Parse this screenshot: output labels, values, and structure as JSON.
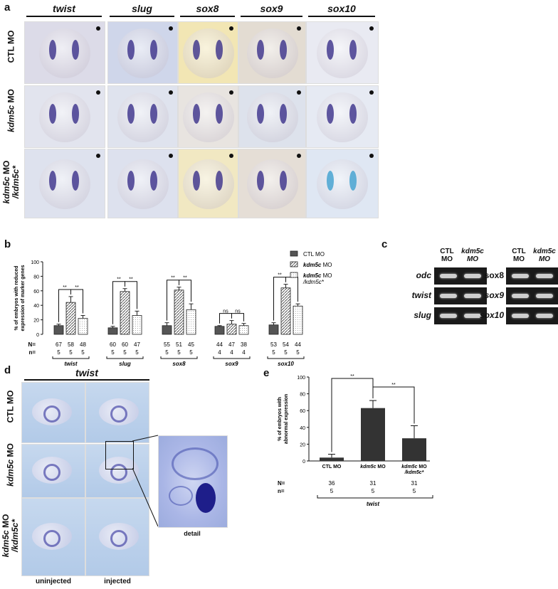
{
  "panel_a": {
    "letter": "a",
    "columns": [
      "twist",
      "slug",
      "sox8",
      "sox9",
      "sox10"
    ],
    "rows": [
      {
        "label": "CTL MO"
      },
      {
        "label_gene": "kdm5c",
        "label_rest": " MO"
      },
      {
        "label_gene": "kdm5c",
        "label_rest": " MO",
        "label_line2": "/kdm5c*"
      }
    ]
  },
  "panel_b": {
    "letter": "b",
    "ylabel": "% of embryos with reduced expression of marker genes",
    "legend": [
      {
        "label": "CTL MO",
        "fill": "#555555"
      },
      {
        "label_gene": "kdm5c",
        "label_rest": " MO",
        "fill": "hatch"
      },
      {
        "label_gene": "kdm5c",
        "label_rest": " MO",
        "label_line2": "/kdm5c*",
        "fill": "dots"
      }
    ],
    "row_labels": {
      "N": "N=",
      "n": "n="
    },
    "sig": [
      "**",
      "**",
      "**",
      "**",
      "**",
      "**",
      "ns",
      "ns",
      "**",
      "**"
    ]
  },
  "panel_c": {
    "letter": "c",
    "col_left": [
      "CTL\nMO",
      "kdm5c\nMO"
    ],
    "col_right": [
      "CTL\nMO",
      "kdm5c\nMO"
    ],
    "left_genes": [
      "odc",
      "twist",
      "slug"
    ],
    "right_genes": [
      "sox8",
      "sox9",
      "sox10"
    ]
  },
  "panel_d": {
    "letter": "d",
    "title": "twist",
    "rows": [
      {
        "label": "CTL MO"
      },
      {
        "label_gene": "kdm5c",
        "label_rest": " MO"
      },
      {
        "label_gene": "kdm5c",
        "label_rest": " MO",
        "label_line2": "/kdm5c*"
      }
    ],
    "bottom_left": "uninjected",
    "bottom_right": "injected",
    "detail": "detail"
  },
  "panel_e": {
    "letter": "e",
    "ylabel": "% of embryos with abnormal expression",
    "gene": "twist",
    "sig": [
      "**",
      "**"
    ]
  },
  "chart_data": [
    {
      "type": "bar",
      "categories": [
        "twist",
        "slug",
        "sox8",
        "sox9",
        "sox10"
      ],
      "series": [
        {
          "name": "CTL MO",
          "values": [
            12,
            9,
            12,
            11,
            13
          ],
          "errors": [
            2,
            2,
            4,
            1,
            3
          ],
          "N": [
            67,
            60,
            55,
            44,
            53
          ],
          "n": [
            5,
            5,
            5,
            4,
            5
          ]
        },
        {
          "name": "kdm5c MO",
          "values": [
            44,
            59,
            61,
            14,
            64
          ],
          "errors": [
            8,
            4,
            4,
            5,
            5
          ],
          "N": [
            58,
            60,
            51,
            47,
            54
          ],
          "n": [
            5,
            5,
            5,
            4,
            5
          ]
        },
        {
          "name": "kdm5c MO /kdm5c*",
          "values": [
            22,
            26,
            34,
            12,
            39
          ],
          "errors": [
            4,
            6,
            8,
            3,
            3
          ],
          "N": [
            48,
            47,
            45,
            38,
            44
          ],
          "n": [
            5,
            5,
            5,
            4,
            5
          ]
        }
      ],
      "ylim": [
        0,
        100
      ],
      "yticks": [
        0,
        20,
        40,
        60,
        80,
        100
      ]
    },
    {
      "type": "bar",
      "categories": [
        "CTL MO",
        "kdm5c MO",
        "kdm5c MO /kdm5c*"
      ],
      "values": [
        4,
        63,
        27
      ],
      "errors": [
        4,
        9,
        15
      ],
      "N": [
        36,
        31,
        31
      ],
      "n": [
        5,
        5,
        5
      ],
      "ylim": [
        0,
        100
      ],
      "yticks": [
        0,
        20,
        40,
        60,
        80,
        100
      ]
    }
  ]
}
